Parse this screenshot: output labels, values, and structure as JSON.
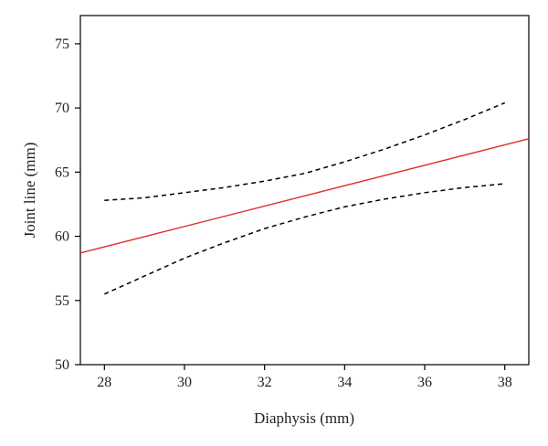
{
  "chart_data": {
    "type": "line",
    "title": "",
    "xlabel": "Diaphysis (mm)",
    "ylabel": "Joint line (mm)",
    "xlim": [
      27.4,
      38.6
    ],
    "ylim": [
      50,
      77.2
    ],
    "xticks": [
      28,
      30,
      32,
      34,
      36,
      38
    ],
    "yticks": [
      50,
      55,
      60,
      65,
      70,
      75
    ],
    "grid": false,
    "legend": "none",
    "series": [
      {
        "role": "fit",
        "style": "solid",
        "color": "#e0302a",
        "x": [
          27.4,
          38.6
        ],
        "y": [
          58.7,
          67.6
        ]
      },
      {
        "role": "upper-ci",
        "style": "dashed",
        "color": "#000000",
        "x": [
          28,
          29,
          30,
          31,
          32,
          33,
          34,
          35,
          36,
          37,
          38
        ],
        "y": [
          62.8,
          63.0,
          63.4,
          63.8,
          64.3,
          64.9,
          65.8,
          66.8,
          67.9,
          69.1,
          70.4
        ]
      },
      {
        "role": "lower-ci",
        "style": "dashed",
        "color": "#000000",
        "x": [
          28,
          29,
          30,
          31,
          32,
          33,
          34,
          35,
          36,
          37,
          38
        ],
        "y": [
          55.5,
          56.9,
          58.3,
          59.5,
          60.6,
          61.5,
          62.3,
          62.9,
          63.4,
          63.8,
          64.1
        ]
      }
    ]
  }
}
